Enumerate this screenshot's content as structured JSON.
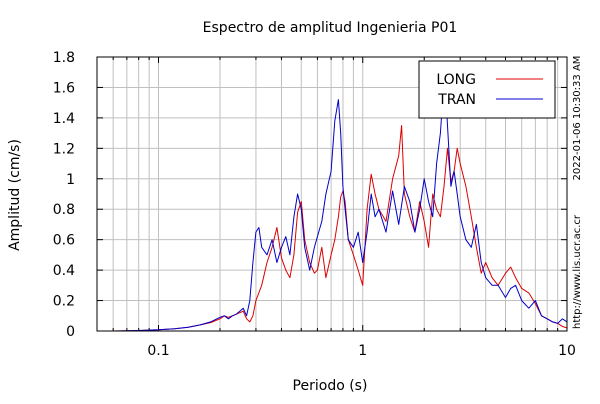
{
  "chart_data": {
    "type": "line",
    "title": "Espectro de amplitud Ingenieria P01",
    "xlabel": "Periodo (s)",
    "ylabel": "Amplitud (cm/s)",
    "xscale": "log",
    "xlim": [
      0.05,
      10
    ],
    "ylim": [
      0,
      1.8
    ],
    "x_tick_labels": [
      {
        "value": 0.1,
        "label": "0.1"
      },
      {
        "value": 1,
        "label": "1"
      },
      {
        "value": 10,
        "label": "10"
      }
    ],
    "y_tick_labels": [
      {
        "value": 0,
        "label": "0"
      },
      {
        "value": 0.2,
        "label": "0.2"
      },
      {
        "value": 0.4,
        "label": "0.4"
      },
      {
        "value": 0.6,
        "label": "0.6"
      },
      {
        "value": 0.8,
        "label": "0.8"
      },
      {
        "value": 1.0,
        "label": "1"
      },
      {
        "value": 1.2,
        "label": "1.2"
      },
      {
        "value": 1.4,
        "label": "1.4"
      },
      {
        "value": 1.6,
        "label": "1.6"
      },
      {
        "value": 1.8,
        "label": "1.8"
      }
    ],
    "grid": true,
    "legend_position": "top-right",
    "timestamp_label": "2022-01-06 10:30:33 AM",
    "source_label": "http://www.lis.ucr.ac.cr",
    "series": [
      {
        "name": "LONG",
        "color": "#dd0000",
        "x": [
          0.05,
          0.06,
          0.08,
          0.1,
          0.12,
          0.14,
          0.16,
          0.18,
          0.2,
          0.21,
          0.22,
          0.23,
          0.24,
          0.25,
          0.26,
          0.27,
          0.28,
          0.29,
          0.3,
          0.32,
          0.34,
          0.36,
          0.38,
          0.4,
          0.42,
          0.44,
          0.46,
          0.48,
          0.5,
          0.52,
          0.55,
          0.58,
          0.6,
          0.63,
          0.66,
          0.7,
          0.73,
          0.76,
          0.78,
          0.8,
          0.82,
          0.85,
          0.9,
          0.95,
          1.0,
          1.05,
          1.1,
          1.15,
          1.2,
          1.3,
          1.4,
          1.5,
          1.55,
          1.6,
          1.7,
          1.8,
          1.9,
          2.0,
          2.1,
          2.2,
          2.3,
          2.4,
          2.5,
          2.6,
          2.7,
          2.8,
          2.9,
          3.0,
          3.2,
          3.4,
          3.6,
          3.8,
          4.0,
          4.3,
          4.6,
          5.0,
          5.3,
          5.6,
          6.0,
          6.5,
          7.0,
          7.5,
          8.0,
          8.5,
          9.0,
          9.5,
          10.0
        ],
        "y": [
          0,
          0,
          0.003,
          0.008,
          0.015,
          0.025,
          0.04,
          0.055,
          0.08,
          0.1,
          0.09,
          0.1,
          0.11,
          0.12,
          0.13,
          0.08,
          0.06,
          0.1,
          0.2,
          0.3,
          0.45,
          0.55,
          0.68,
          0.48,
          0.4,
          0.35,
          0.5,
          0.78,
          0.85,
          0.6,
          0.45,
          0.38,
          0.4,
          0.55,
          0.35,
          0.5,
          0.6,
          0.75,
          0.88,
          0.92,
          0.85,
          0.6,
          0.5,
          0.4,
          0.3,
          0.8,
          1.03,
          0.9,
          0.8,
          0.72,
          1.0,
          1.15,
          1.35,
          0.9,
          0.75,
          0.65,
          0.85,
          0.72,
          0.55,
          0.9,
          0.8,
          0.75,
          0.95,
          1.2,
          0.98,
          1.05,
          1.2,
          1.1,
          0.95,
          0.75,
          0.55,
          0.38,
          0.45,
          0.35,
          0.3,
          0.38,
          0.42,
          0.35,
          0.28,
          0.25,
          0.18,
          0.1,
          0.08,
          0.06,
          0.05,
          0.03,
          0.02
        ]
      },
      {
        "name": "TRAN",
        "color": "#0000cc",
        "x": [
          0.05,
          0.06,
          0.08,
          0.1,
          0.12,
          0.14,
          0.16,
          0.18,
          0.2,
          0.21,
          0.22,
          0.23,
          0.24,
          0.25,
          0.26,
          0.27,
          0.28,
          0.29,
          0.3,
          0.31,
          0.32,
          0.34,
          0.36,
          0.38,
          0.4,
          0.42,
          0.44,
          0.46,
          0.48,
          0.5,
          0.52,
          0.55,
          0.58,
          0.6,
          0.63,
          0.66,
          0.7,
          0.73,
          0.76,
          0.78,
          0.8,
          0.82,
          0.85,
          0.9,
          0.95,
          1.0,
          1.05,
          1.1,
          1.15,
          1.2,
          1.3,
          1.4,
          1.5,
          1.6,
          1.7,
          1.8,
          1.9,
          2.0,
          2.1,
          2.2,
          2.3,
          2.4,
          2.5,
          2.55,
          2.6,
          2.7,
          2.8,
          2.9,
          3.0,
          3.2,
          3.4,
          3.6,
          3.8,
          4.0,
          4.3,
          4.6,
          5.0,
          5.3,
          5.6,
          6.0,
          6.5,
          7.0,
          7.5,
          8.0,
          8.5,
          9.0,
          9.5,
          10.0
        ],
        "y": [
          0,
          0,
          0.003,
          0.008,
          0.015,
          0.025,
          0.04,
          0.06,
          0.09,
          0.1,
          0.08,
          0.1,
          0.11,
          0.13,
          0.15,
          0.1,
          0.2,
          0.45,
          0.65,
          0.68,
          0.55,
          0.5,
          0.6,
          0.45,
          0.55,
          0.62,
          0.5,
          0.75,
          0.9,
          0.8,
          0.55,
          0.4,
          0.55,
          0.62,
          0.72,
          0.9,
          1.05,
          1.38,
          1.52,
          1.3,
          0.95,
          0.8,
          0.6,
          0.55,
          0.65,
          0.45,
          0.65,
          0.9,
          0.75,
          0.8,
          0.65,
          0.92,
          0.7,
          0.95,
          0.85,
          0.65,
          0.8,
          1.0,
          0.85,
          0.75,
          1.1,
          1.3,
          1.65,
          1.55,
          1.35,
          0.95,
          1.05,
          0.9,
          0.75,
          0.6,
          0.55,
          0.7,
          0.45,
          0.35,
          0.3,
          0.3,
          0.22,
          0.28,
          0.3,
          0.2,
          0.15,
          0.2,
          0.1,
          0.08,
          0.06,
          0.05,
          0.08,
          0.06
        ]
      }
    ]
  }
}
